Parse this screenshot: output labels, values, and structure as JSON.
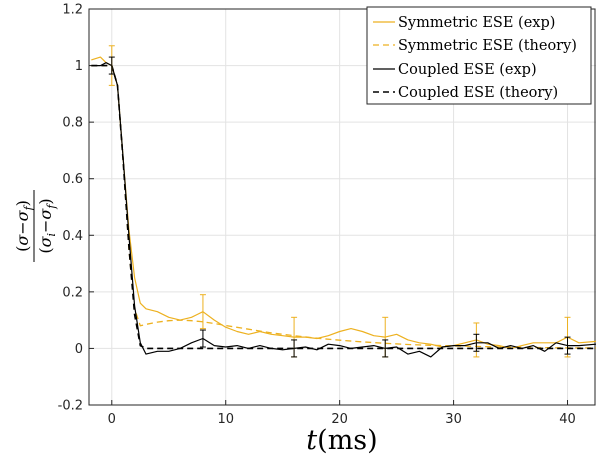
{
  "chart_data": {
    "type": "line",
    "xlabel": "t(ms)",
    "ylabel": "(σ−σ_f)/(σ_i−σ_f)",
    "xlim": [
      -2,
      42.5
    ],
    "ylim": [
      -0.2,
      1.2
    ],
    "xticks": [
      "0",
      "10",
      "20",
      "30",
      "40"
    ],
    "yticks": [
      "-0.2",
      "0",
      "0.2",
      "0.4",
      "0.6",
      "0.8",
      "1",
      "1.2"
    ],
    "grid": true,
    "legend_position": "top-right",
    "series": [
      {
        "name": "Symmetric ESE (exp)",
        "color": "#EDB120",
        "style": "solid",
        "x": [
          -1.8,
          -1.0,
          -0.5,
          0,
          0.5,
          1,
          1.5,
          2,
          2.5,
          3,
          4,
          5,
          6,
          7,
          7.5,
          8,
          9,
          10,
          11,
          12,
          13,
          14,
          15,
          16,
          17,
          18,
          19,
          20,
          21,
          22,
          23,
          24,
          25,
          26,
          27,
          28,
          29,
          30,
          31,
          32,
          33,
          34,
          35,
          36,
          37,
          38,
          39,
          40,
          41,
          42.5
        ],
        "y": [
          1.02,
          1.03,
          1.01,
          1.0,
          0.93,
          0.67,
          0.42,
          0.25,
          0.16,
          0.14,
          0.13,
          0.11,
          0.1,
          0.11,
          0.12,
          0.13,
          0.1,
          0.075,
          0.06,
          0.05,
          0.06,
          0.05,
          0.045,
          0.04,
          0.04,
          0.035,
          0.045,
          0.06,
          0.07,
          0.06,
          0.045,
          0.04,
          0.05,
          0.03,
          0.02,
          0.015,
          0.005,
          0.01,
          0.02,
          0.03,
          0.015,
          0.01,
          0.0,
          0.01,
          0.02,
          0.02,
          0.02,
          0.04,
          0.02,
          0.025
        ]
      },
      {
        "name": "Symmetric ESE (theory)",
        "color": "#EDB120",
        "style": "dashed",
        "x": [
          -1.8,
          0,
          0.5,
          1,
          1.5,
          2,
          2.5,
          3,
          4,
          5,
          6,
          7,
          8,
          9,
          10,
          12,
          14,
          16,
          18,
          20,
          22,
          24,
          26,
          28,
          30,
          32,
          34,
          36,
          38,
          40,
          42.5
        ],
        "y": [
          1.0,
          1.0,
          0.93,
          0.66,
          0.35,
          0.14,
          0.08,
          0.085,
          0.093,
          0.098,
          0.1,
          0.098,
          0.094,
          0.088,
          0.081,
          0.068,
          0.055,
          0.045,
          0.036,
          0.029,
          0.023,
          0.018,
          0.014,
          0.011,
          0.009,
          0.007,
          0.005,
          0.004,
          0.003,
          0.002,
          0.002
        ]
      },
      {
        "name": "Coupled ESE (exp)",
        "color": "#000000",
        "style": "solid",
        "x": [
          -1.8,
          -1.0,
          -0.5,
          0,
          0.5,
          1,
          1.5,
          2,
          2.5,
          3,
          4,
          5,
          6,
          7,
          8,
          9,
          10,
          11,
          12,
          13,
          14,
          15,
          16,
          17,
          18,
          19,
          20,
          21,
          22,
          23,
          24,
          25,
          26,
          27,
          28,
          29,
          30,
          31,
          32,
          33,
          34,
          35,
          36,
          37,
          38,
          39,
          40,
          41,
          42.5
        ],
        "y": [
          1.0,
          1.0,
          1.01,
          1.0,
          0.93,
          0.67,
          0.4,
          0.15,
          0.02,
          -0.02,
          -0.01,
          -0.01,
          0.0,
          0.02,
          0.035,
          0.01,
          0.005,
          0.01,
          0.0,
          0.01,
          0.0,
          -0.005,
          0.0,
          0.005,
          -0.005,
          0.015,
          0.01,
          0.0,
          0.005,
          0.01,
          0.0,
          0.005,
          -0.02,
          -0.01,
          -0.03,
          0.005,
          0.01,
          0.01,
          0.02,
          0.02,
          0.0,
          0.01,
          0.0,
          0.01,
          -0.01,
          0.02,
          0.01,
          0.01,
          0.015
        ]
      },
      {
        "name": "Coupled ESE (theory)",
        "color": "#000000",
        "style": "dashed",
        "x": [
          -1.8,
          0,
          0.5,
          1,
          1.5,
          2,
          2.5,
          3,
          5,
          10,
          20,
          30,
          42.5
        ],
        "y": [
          1.0,
          1.0,
          0.93,
          0.66,
          0.36,
          0.12,
          0.01,
          0.0,
          0.0,
          0.0,
          0.0,
          0.0,
          0.0
        ]
      }
    ],
    "error_bars": [
      {
        "series": "Symmetric ESE (exp)",
        "x": [
          0,
          8,
          16,
          24,
          32,
          40
        ],
        "y": [
          1.0,
          0.13,
          0.04,
          0.04,
          0.03,
          0.04
        ],
        "err": [
          0.07,
          0.06,
          0.07,
          0.07,
          0.06,
          0.07
        ]
      },
      {
        "series": "Coupled ESE (exp)",
        "x": [
          0,
          8,
          16,
          24,
          32,
          40
        ],
        "y": [
          1.0,
          0.035,
          0.0,
          0.0,
          0.02,
          0.01
        ],
        "err": [
          0.03,
          0.03,
          0.03,
          0.03,
          0.03,
          0.03
        ]
      }
    ]
  }
}
